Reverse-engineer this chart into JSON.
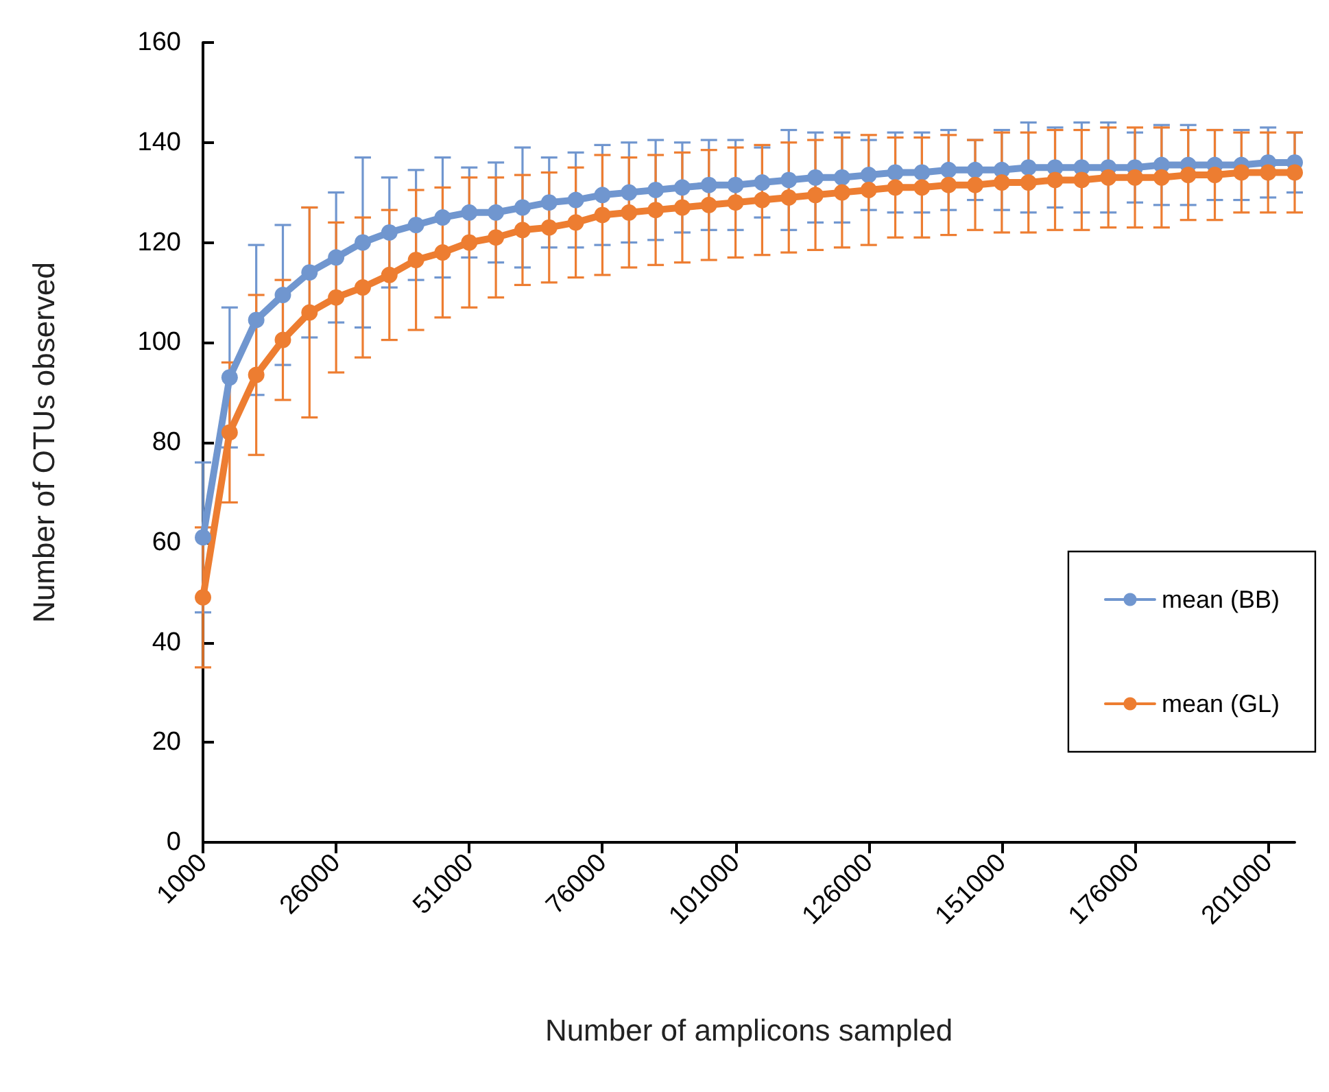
{
  "chart_data": {
    "type": "line",
    "xlabel": "Number of amplicons sampled",
    "ylabel": "Number of OTUs observed",
    "categories": [
      "1000",
      null,
      null,
      null,
      null,
      "26000",
      null,
      null,
      null,
      null,
      "51000",
      null,
      null,
      null,
      null,
      "76000",
      null,
      null,
      null,
      null,
      "101000",
      null,
      null,
      null,
      null,
      "126000",
      null,
      null,
      null,
      null,
      "151000",
      null,
      null,
      null,
      null,
      "176000",
      null,
      null,
      null,
      null,
      "201000",
      null
    ],
    "series": [
      {
        "name": "mean (BB)",
        "color": "#7096cf",
        "values": [
          61,
          93,
          104.5,
          109.5,
          114,
          117,
          120,
          122,
          123.5,
          125,
          126,
          126,
          127,
          128,
          128.5,
          129.5,
          130,
          130.5,
          131,
          131.5,
          131.5,
          132,
          132.5,
          133,
          133,
          133.5,
          134,
          134,
          134.5,
          134.5,
          134.5,
          135,
          135,
          135,
          135,
          135,
          135.5,
          135.5,
          135.5,
          135.5,
          136,
          136
        ],
        "errors": [
          15,
          14,
          15,
          14,
          13,
          13,
          17,
          11,
          11,
          12,
          9,
          10,
          12,
          9,
          9.5,
          10,
          10,
          10,
          9,
          9,
          9,
          7,
          10,
          9,
          9,
          7,
          8,
          8,
          8,
          6,
          8,
          9,
          8,
          9,
          9,
          7,
          8,
          8,
          7,
          7,
          7,
          6
        ]
      },
      {
        "name": "mean (GL)",
        "color": "#ed7d31",
        "values": [
          49,
          82,
          93.5,
          100.5,
          106,
          109,
          111,
          113.5,
          116.5,
          118,
          120,
          121,
          122.5,
          123,
          124,
          125.5,
          126,
          126.5,
          127,
          127.5,
          128,
          128.5,
          129,
          129.5,
          130,
          130.5,
          131,
          131,
          131.5,
          131.5,
          132,
          132,
          132.5,
          132.5,
          133,
          133,
          133,
          133.5,
          133.5,
          134,
          134,
          134
        ],
        "errors": [
          14,
          14,
          16,
          12,
          21,
          15,
          14,
          13,
          14,
          13,
          13,
          12,
          11,
          11,
          11,
          12,
          11,
          11,
          11,
          11,
          11,
          11,
          11,
          11,
          11,
          11,
          10,
          10,
          10,
          9,
          10,
          10,
          10,
          10,
          10,
          10,
          10,
          9,
          9,
          8,
          8,
          8
        ]
      }
    ],
    "ylim": [
      0,
      160
    ],
    "yticks": [
      0,
      20,
      40,
      60,
      80,
      100,
      120,
      140,
      160
    ],
    "grid": false,
    "legend": "right",
    "marker": "circle",
    "line_style": "solid"
  }
}
